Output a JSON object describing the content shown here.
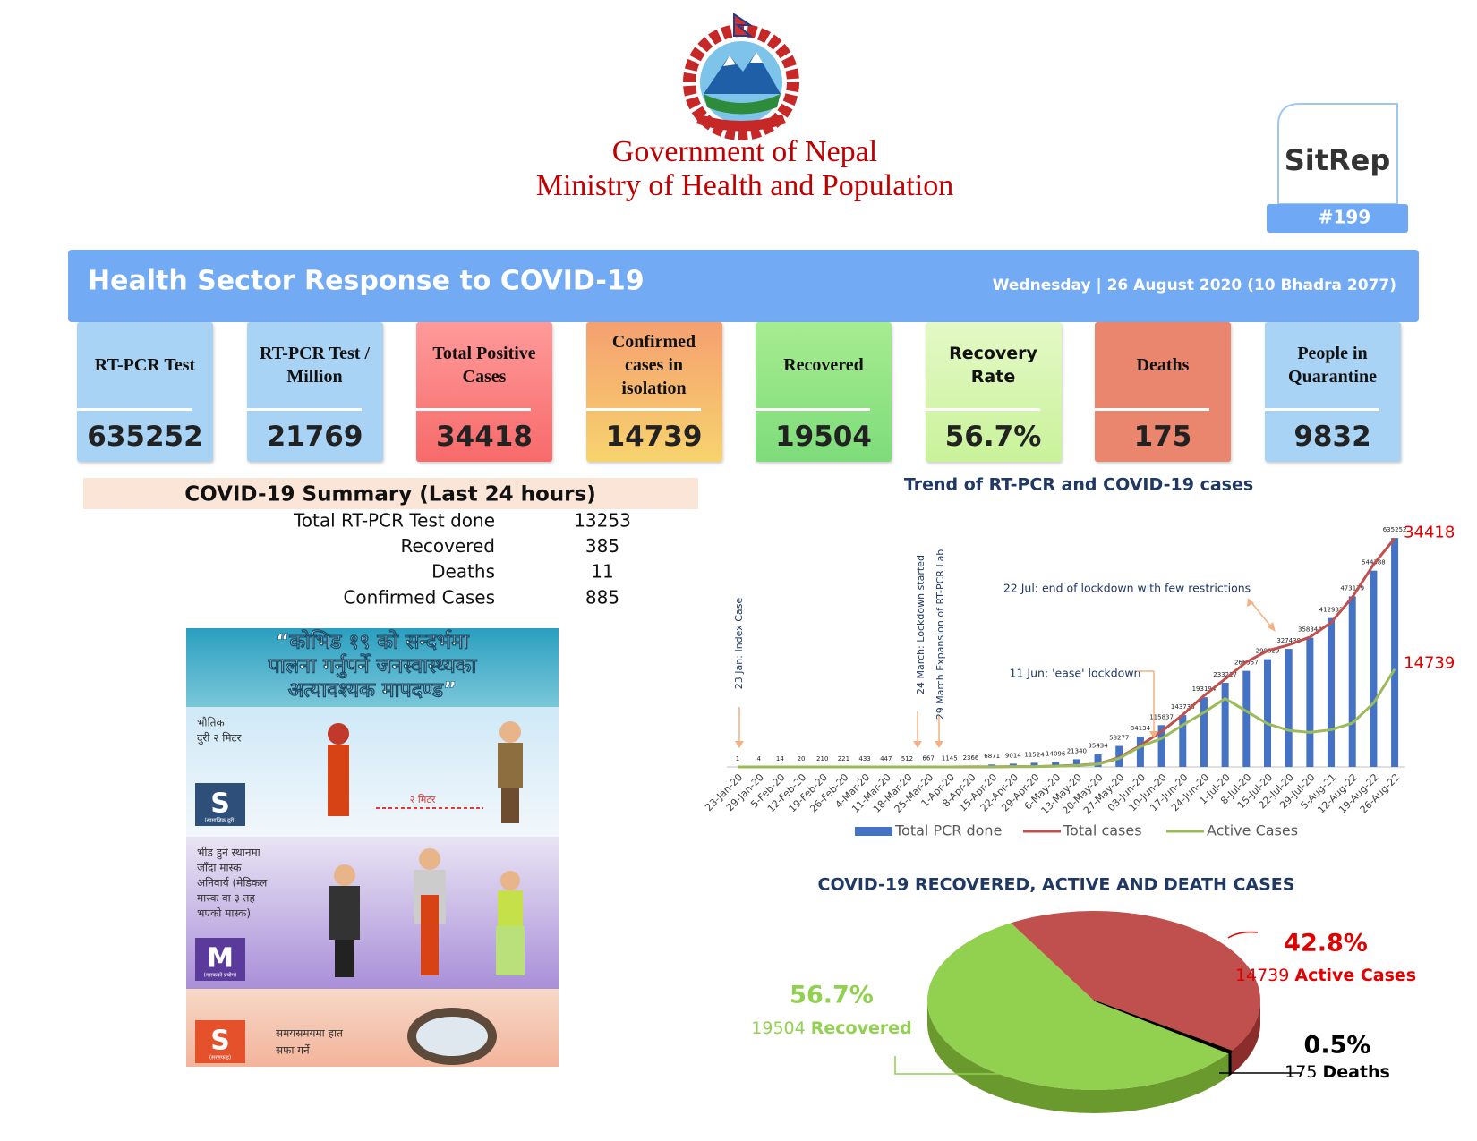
{
  "header": {
    "line1": "Government of Nepal",
    "line2": "Ministry of Health and Population",
    "badge": "SitRep",
    "issue": "#199"
  },
  "banner": {
    "title": "Health Sector Response to COVID-19",
    "date": "Wednesday | 26 August 2020 (10 Bhadra 2077)"
  },
  "cards": [
    {
      "label": "RT-PCR Test",
      "value": 635252
    },
    {
      "label": "RT-PCR Test / Million",
      "value": 21769
    },
    {
      "label": "Total Positive Cases",
      "value": 34418
    },
    {
      "label": "Confirmed cases in isolation",
      "value": 14739
    },
    {
      "label": "Recovered",
      "value": 19504
    },
    {
      "label": "Recovery Rate",
      "value": 56.7,
      "value_label": "56.7%"
    },
    {
      "label": "Deaths",
      "value": 175
    },
    {
      "label": "People in Quarantine",
      "value": 9832
    }
  ],
  "summary": {
    "title": "COVID-19 Summary (Last 24 hours)",
    "rows": [
      {
        "label": "Total RT-PCR Test done",
        "value": 13253
      },
      {
        "label": "Recovered",
        "value": 385
      },
      {
        "label": "Deaths",
        "value": 11
      },
      {
        "label": "Confirmed Cases",
        "value": 885
      }
    ]
  },
  "poster": {
    "title_lines": [
      "“कोभिड १९ को सन्दर्भमा",
      "पालना गर्नुपर्ने जनस्वास्थ्यका",
      "अत्यावश्यक मापदण्ड”"
    ],
    "distance": "२ मिटर",
    "items": [
      {
        "badge": "S",
        "caption": "(सामाजिक दुरी)",
        "text_lines": [
          "भौतिक",
          "दुरी २ मिटर"
        ]
      },
      {
        "badge": "M",
        "caption": "(मास्कको प्रयोग)",
        "text_lines": [
          "भीड हुने स्थानमा",
          "जाँदा मास्क",
          "अनिवार्य (मेडिकल",
          "मास्क वा ३ तह",
          "भएको मास्क)"
        ]
      },
      {
        "badge": "S",
        "caption": "(सरसफाइ)",
        "text_lines": [
          "समयसमयमा हात",
          "सफा गर्ने"
        ]
      }
    ]
  },
  "chart_data": [
    {
      "type": "combo",
      "title": "Trend of RT-PCR and COVID-19 cases",
      "categories": [
        "23-Jan-20",
        "29-Jan-20",
        "5-Feb-20",
        "12-Feb-20",
        "19-Feb-20",
        "26-Feb-20",
        "4-Mar-20",
        "11-Mar-20",
        "18-Mar-20",
        "25-Mar-20",
        "1-Apr-20",
        "8-Apr-20",
        "15-Apr-20",
        "22-Apr-20",
        "29-Apr-20",
        "6-May-20",
        "13-May-20",
        "20-May-20",
        "27-May-20",
        "03-Jun-20",
        "10-Jun-20",
        "17-Jun-20",
        "24-Jun-20",
        "1-Jul-20",
        "8-Jul-20",
        "15-Jul-20",
        "22-Jul-20",
        "29-Jul-20",
        "5-Aug-21",
        "12-Aug-22",
        "19-Aug-22",
        "26-Aug-22"
      ],
      "series": [
        {
          "name": "Total PCR done",
          "color": "#4472c4",
          "values": [
            1,
            4,
            14,
            20,
            210,
            221,
            433,
            447,
            512,
            667,
            1145,
            2366,
            6871,
            9014,
            11524,
            14096,
            21340,
            35434,
            58277,
            84134,
            115837,
            143738,
            193194,
            233227,
            266557,
            298829,
            327438,
            358344,
            412933,
            473179,
            544388,
            635252
          ]
        },
        {
          "name": "Total cases",
          "color": "#c0504d",
          "axis": "y2",
          "values": [
            1,
            1,
            1,
            1,
            1,
            1,
            1,
            1,
            1,
            3,
            6,
            9,
            16,
            48,
            57,
            134,
            249,
            457,
            1401,
            3235,
            5335,
            7848,
            10728,
            13248,
            15784,
            17502,
            18374,
            19547,
            21750,
            25550,
            30483,
            34418
          ]
        },
        {
          "name": "Active Cases",
          "color": "#9bbb59",
          "axis": "y2",
          "values": [
            1,
            1,
            1,
            1,
            1,
            1,
            1,
            1,
            1,
            3,
            6,
            9,
            14,
            44,
            44,
            105,
            214,
            420,
            1290,
            3060,
            4300,
            6300,
            8200,
            10300,
            8400,
            6500,
            5500,
            5200,
            5600,
            6600,
            9600,
            14739
          ]
        }
      ],
      "ylim": [
        0,
        700000
      ],
      "y2lim": [
        0,
        38000
      ],
      "annotations": [
        "23 Jan: Index Case",
        "24 March: Lockdown started",
        "29 March Expansion of RT-PCR Lab",
        "11 Jun: 'ease' lockdown",
        "22 Jul: end of lockdown with few restrictions"
      ]
    },
    {
      "type": "pie",
      "title": "COVID-19 RECOVERED, ACTIVE AND DEATH CASES",
      "categories": [
        "Recovered",
        "Active Cases",
        "Deaths"
      ],
      "values": [
        56.7,
        42.8,
        0.5
      ],
      "value_labels": [
        "56.7%",
        "42.8%",
        "0.5%"
      ],
      "counts": [
        19504,
        14739,
        175
      ],
      "colors": [
        "#92d050",
        "#c0504d",
        "#000000"
      ]
    }
  ]
}
